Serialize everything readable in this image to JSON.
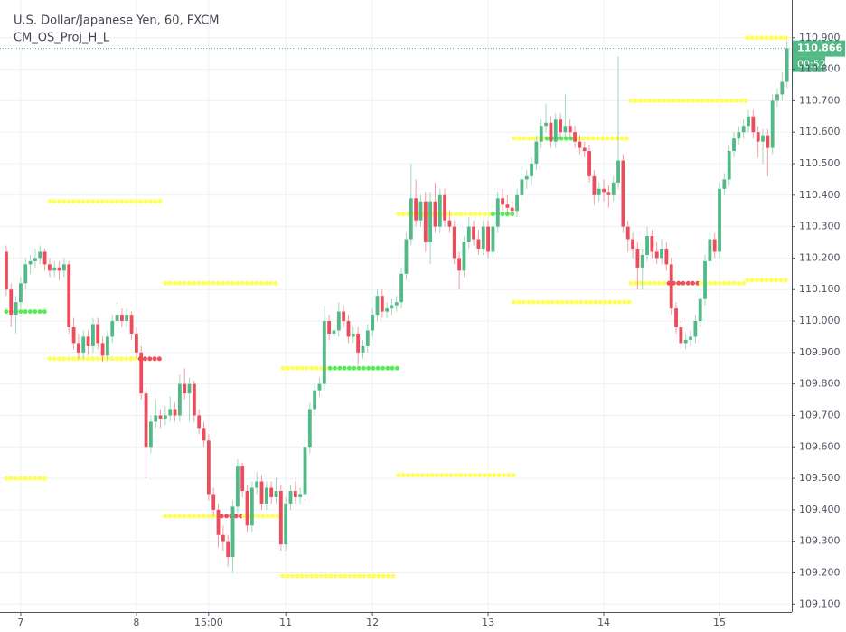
{
  "chart_data": {
    "type": "candlestick",
    "title": "U.S. Dollar/Japanese Yen, 60, FXCM",
    "subtitle": "CM_OS_Proj_H_L",
    "up_color": "#53b987",
    "down_color": "#eb4d5c",
    "grid": true,
    "xlim": [
      -1.3,
      163.0
    ],
    "ylim": [
      109.075,
      111.02
    ],
    "xticks": [
      {
        "value": 3,
        "label": "7"
      },
      {
        "value": 27,
        "label": "8"
      },
      {
        "value": 42,
        "label": "15:00"
      },
      {
        "value": 58,
        "label": "11"
      },
      {
        "value": 76,
        "label": "12"
      },
      {
        "value": 100,
        "label": "13"
      },
      {
        "value": 124,
        "label": "14"
      },
      {
        "value": 148,
        "label": "15"
      }
    ],
    "yticks": [
      {
        "value": 109.1,
        "label": "109.100"
      },
      {
        "value": 109.2,
        "label": "109.200"
      },
      {
        "value": 109.3,
        "label": "109.300"
      },
      {
        "value": 109.4,
        "label": "109.400"
      },
      {
        "value": 109.5,
        "label": "109.500"
      },
      {
        "value": 109.6,
        "label": "109.600"
      },
      {
        "value": 109.7,
        "label": "109.700"
      },
      {
        "value": 109.8,
        "label": "109.800"
      },
      {
        "value": 109.9,
        "label": "109.900"
      },
      {
        "value": 110.0,
        "label": "110.000"
      },
      {
        "value": 110.1,
        "label": "110.100"
      },
      {
        "value": 110.2,
        "label": "110.200"
      },
      {
        "value": 110.3,
        "label": "110.300"
      },
      {
        "value": 110.4,
        "label": "110.400"
      },
      {
        "value": 110.5,
        "label": "110.500"
      },
      {
        "value": 110.6,
        "label": "110.600"
      },
      {
        "value": 110.7,
        "label": "110.700"
      },
      {
        "value": 110.8,
        "label": "110.800"
      },
      {
        "value": 110.9,
        "label": "110.900"
      }
    ],
    "last_price": 110.866,
    "last_price_color": "#53b987",
    "countdown": "00:52",
    "candles": [
      [
        110.22,
        110.24,
        110.08,
        110.1
      ],
      [
        110.1,
        110.12,
        109.98,
        110.02
      ],
      [
        110.02,
        110.08,
        109.96,
        110.06
      ],
      [
        110.06,
        110.14,
        110.04,
        110.12
      ],
      [
        110.12,
        110.2,
        110.1,
        110.18
      ],
      [
        110.18,
        110.21,
        110.15,
        110.19
      ],
      [
        110.19,
        110.23,
        110.17,
        110.2
      ],
      [
        110.2,
        110.24,
        110.18,
        110.22
      ],
      [
        110.22,
        110.23,
        110.16,
        110.18
      ],
      [
        110.18,
        110.2,
        110.14,
        110.16
      ],
      [
        110.16,
        110.19,
        110.14,
        110.17
      ],
      [
        110.17,
        110.19,
        110.13,
        110.16
      ],
      [
        110.16,
        110.2,
        110.14,
        110.18
      ],
      [
        110.18,
        110.19,
        109.96,
        109.98
      ],
      [
        109.98,
        110.01,
        109.91,
        109.93
      ],
      [
        109.93,
        109.96,
        109.88,
        109.9
      ],
      [
        109.9,
        109.97,
        109.88,
        109.95
      ],
      [
        109.95,
        109.97,
        109.89,
        109.92
      ],
      [
        109.92,
        110.01,
        109.9,
        109.99
      ],
      [
        109.99,
        110.01,
        109.91,
        109.93
      ],
      [
        109.93,
        109.95,
        109.87,
        109.89
      ],
      [
        109.89,
        109.97,
        109.87,
        109.95
      ],
      [
        109.95,
        110.02,
        109.93,
        110.0
      ],
      [
        110.0,
        110.06,
        109.98,
        110.02
      ],
      [
        110.02,
        110.04,
        109.98,
        110.0
      ],
      [
        110.0,
        110.04,
        109.98,
        110.02
      ],
      [
        110.02,
        110.03,
        109.94,
        109.96
      ],
      [
        109.96,
        109.98,
        109.88,
        109.9
      ],
      [
        109.9,
        109.92,
        109.75,
        109.77
      ],
      [
        109.77,
        109.79,
        109.5,
        109.6
      ],
      [
        109.6,
        109.7,
        109.58,
        109.68
      ],
      [
        109.68,
        109.75,
        109.66,
        109.7
      ],
      [
        109.7,
        109.72,
        109.66,
        109.69
      ],
      [
        109.69,
        109.73,
        109.67,
        109.7
      ],
      [
        109.7,
        109.76,
        109.68,
        109.72
      ],
      [
        109.72,
        109.74,
        109.68,
        109.7
      ],
      [
        109.7,
        109.83,
        109.68,
        109.8
      ],
      [
        109.8,
        109.85,
        109.75,
        109.77
      ],
      [
        109.77,
        109.82,
        109.68,
        109.8
      ],
      [
        109.8,
        109.81,
        109.68,
        109.7
      ],
      [
        109.7,
        109.72,
        109.64,
        109.66
      ],
      [
        109.66,
        109.68,
        109.6,
        109.62
      ],
      [
        109.62,
        109.64,
        109.43,
        109.45
      ],
      [
        109.45,
        109.47,
        109.38,
        109.4
      ],
      [
        109.4,
        109.42,
        109.28,
        109.32
      ],
      [
        109.32,
        109.35,
        109.27,
        109.3
      ],
      [
        109.3,
        109.32,
        109.22,
        109.25
      ],
      [
        109.25,
        109.43,
        109.2,
        109.41
      ],
      [
        109.41,
        109.56,
        109.39,
        109.54
      ],
      [
        109.54,
        109.55,
        109.44,
        109.46
      ],
      [
        109.46,
        109.48,
        109.33,
        109.35
      ],
      [
        109.35,
        109.49,
        109.33,
        109.47
      ],
      [
        109.47,
        109.52,
        109.45,
        109.49
      ],
      [
        109.49,
        109.51,
        109.4,
        109.42
      ],
      [
        109.42,
        109.49,
        109.4,
        109.47
      ],
      [
        109.47,
        109.49,
        109.42,
        109.44
      ],
      [
        109.44,
        109.5,
        109.42,
        109.46
      ],
      [
        109.46,
        109.48,
        109.27,
        109.29
      ],
      [
        109.29,
        109.44,
        109.27,
        109.42
      ],
      [
        109.42,
        109.48,
        109.4,
        109.46
      ],
      [
        109.46,
        109.49,
        109.42,
        109.44
      ],
      [
        109.44,
        109.47,
        109.42,
        109.45
      ],
      [
        109.45,
        109.62,
        109.43,
        109.6
      ],
      [
        109.6,
        109.74,
        109.58,
        109.72
      ],
      [
        109.72,
        109.8,
        109.7,
        109.78
      ],
      [
        109.78,
        109.82,
        109.76,
        109.8
      ],
      [
        109.8,
        110.05,
        109.78,
        110.0
      ],
      [
        110.0,
        110.02,
        109.94,
        109.96
      ],
      [
        109.96,
        109.99,
        109.94,
        109.97
      ],
      [
        109.97,
        110.06,
        109.95,
        110.03
      ],
      [
        110.03,
        110.05,
        109.98,
        110.0
      ],
      [
        110.0,
        110.02,
        109.93,
        109.95
      ],
      [
        109.95,
        109.98,
        109.93,
        109.96
      ],
      [
        109.96,
        109.98,
        109.86,
        109.9
      ],
      [
        109.9,
        109.94,
        109.88,
        109.92
      ],
      [
        109.92,
        109.99,
        109.9,
        109.97
      ],
      [
        109.97,
        110.04,
        109.95,
        110.02
      ],
      [
        110.02,
        110.1,
        110.0,
        110.08
      ],
      [
        110.08,
        110.1,
        110.01,
        110.03
      ],
      [
        110.03,
        110.06,
        110.01,
        110.04
      ],
      [
        110.04,
        110.07,
        110.02,
        110.05
      ],
      [
        110.05,
        110.08,
        110.03,
        110.06
      ],
      [
        110.06,
        110.17,
        110.04,
        110.15
      ],
      [
        110.15,
        110.28,
        110.13,
        110.26
      ],
      [
        110.26,
        110.5,
        110.24,
        110.39
      ],
      [
        110.39,
        110.45,
        110.3,
        110.32
      ],
      [
        110.32,
        110.4,
        110.3,
        110.38
      ],
      [
        110.38,
        110.41,
        110.22,
        110.25
      ],
      [
        110.25,
        110.41,
        110.18,
        110.38
      ],
      [
        110.38,
        110.44,
        110.28,
        110.3
      ],
      [
        110.3,
        110.42,
        110.28,
        110.4
      ],
      [
        110.4,
        110.42,
        110.3,
        110.32
      ],
      [
        110.32,
        110.35,
        110.28,
        110.3
      ],
      [
        110.3,
        110.32,
        110.18,
        110.2
      ],
      [
        110.2,
        110.22,
        110.1,
        110.16
      ],
      [
        110.16,
        110.27,
        110.14,
        110.25
      ],
      [
        110.25,
        110.33,
        110.23,
        110.3
      ],
      [
        110.3,
        110.32,
        110.24,
        110.26
      ],
      [
        110.26,
        110.29,
        110.21,
        110.23
      ],
      [
        110.23,
        110.32,
        110.21,
        110.3
      ],
      [
        110.3,
        110.32,
        110.2,
        110.22
      ],
      [
        110.22,
        110.32,
        110.2,
        110.3
      ],
      [
        110.3,
        110.41,
        110.28,
        110.39
      ],
      [
        110.39,
        110.42,
        110.35,
        110.37
      ],
      [
        110.37,
        110.4,
        110.34,
        110.36
      ],
      [
        110.36,
        110.38,
        110.33,
        110.35
      ],
      [
        110.35,
        110.42,
        110.33,
        110.4
      ],
      [
        110.4,
        110.49,
        110.38,
        110.45
      ],
      [
        110.45,
        110.48,
        110.42,
        110.46
      ],
      [
        110.46,
        110.52,
        110.43,
        110.5
      ],
      [
        110.5,
        110.59,
        110.48,
        110.57
      ],
      [
        110.57,
        110.64,
        110.55,
        110.62
      ],
      [
        110.62,
        110.69,
        110.6,
        110.63
      ],
      [
        110.63,
        110.65,
        110.55,
        110.57
      ],
      [
        110.57,
        110.66,
        110.55,
        110.64
      ],
      [
        110.64,
        110.66,
        110.58,
        110.6
      ],
      [
        110.6,
        110.72,
        110.58,
        110.62
      ],
      [
        110.62,
        110.64,
        110.58,
        110.6
      ],
      [
        110.6,
        110.62,
        110.55,
        110.57
      ],
      [
        110.57,
        110.59,
        110.53,
        110.55
      ],
      [
        110.55,
        110.57,
        110.52,
        110.54
      ],
      [
        110.54,
        110.56,
        110.44,
        110.46
      ],
      [
        110.46,
        110.48,
        110.37,
        110.4
      ],
      [
        110.4,
        110.44,
        110.38,
        110.42
      ],
      [
        110.42,
        110.45,
        110.38,
        110.41
      ],
      [
        110.41,
        110.43,
        110.36,
        110.4
      ],
      [
        110.4,
        110.46,
        110.38,
        110.44
      ],
      [
        110.44,
        110.84,
        110.42,
        110.51
      ],
      [
        110.51,
        110.53,
        110.28,
        110.3
      ],
      [
        110.3,
        110.32,
        110.22,
        110.26
      ],
      [
        110.26,
        110.28,
        110.2,
        110.23
      ],
      [
        110.23,
        110.25,
        110.1,
        110.17
      ],
      [
        110.17,
        110.23,
        110.1,
        110.21
      ],
      [
        110.21,
        110.3,
        110.19,
        110.27
      ],
      [
        110.27,
        110.29,
        110.2,
        110.22
      ],
      [
        110.22,
        110.25,
        110.18,
        110.2
      ],
      [
        110.2,
        110.26,
        110.18,
        110.23
      ],
      [
        110.23,
        110.25,
        110.16,
        110.18
      ],
      [
        110.18,
        110.2,
        110.02,
        110.04
      ],
      [
        110.04,
        110.06,
        109.96,
        109.98
      ],
      [
        109.98,
        110.0,
        109.91,
        109.93
      ],
      [
        109.93,
        109.96,
        109.91,
        109.94
      ],
      [
        109.94,
        109.97,
        109.92,
        109.95
      ],
      [
        109.95,
        110.02,
        109.93,
        110.0
      ],
      [
        110.0,
        110.09,
        109.98,
        110.07
      ],
      [
        110.07,
        110.21,
        110.05,
        110.19
      ],
      [
        110.19,
        110.28,
        110.17,
        110.26
      ],
      [
        110.26,
        110.28,
        110.2,
        110.22
      ],
      [
        110.22,
        110.44,
        110.2,
        110.42
      ],
      [
        110.42,
        110.47,
        110.4,
        110.45
      ],
      [
        110.45,
        110.56,
        110.43,
        110.54
      ],
      [
        110.54,
        110.6,
        110.52,
        110.58
      ],
      [
        110.58,
        110.62,
        110.56,
        110.6
      ],
      [
        110.6,
        110.64,
        110.58,
        110.62
      ],
      [
        110.62,
        110.67,
        110.6,
        110.65
      ],
      [
        110.65,
        110.67,
        110.58,
        110.6
      ],
      [
        110.6,
        110.62,
        110.52,
        110.57
      ],
      [
        110.57,
        110.61,
        110.5,
        110.59
      ],
      [
        110.59,
        110.61,
        110.46,
        110.55
      ],
      [
        110.55,
        110.72,
        110.53,
        110.7
      ],
      [
        110.7,
        110.74,
        110.68,
        110.72
      ],
      [
        110.72,
        110.79,
        110.7,
        110.76
      ],
      [
        110.76,
        110.89,
        110.74,
        110.866
      ]
    ],
    "levels": [
      {
        "value": 109.5,
        "from": 0,
        "to": 8.4,
        "color": "#ffff55"
      },
      {
        "value": 110.03,
        "from": 0,
        "to": 8.4,
        "color": "#55ee55"
      },
      {
        "value": 110.38,
        "from": 9,
        "to": 32.5,
        "color": "#ffff55"
      },
      {
        "value": 109.88,
        "from": 9,
        "to": 27.8,
        "color": "#ffff55"
      },
      {
        "value": 109.88,
        "from": 27.8,
        "to": 32.5,
        "color": "#f0505a"
      },
      {
        "value": 110.12,
        "from": 33,
        "to": 56.8,
        "color": "#ffff55"
      },
      {
        "value": 109.38,
        "from": 33,
        "to": 44.7,
        "color": "#ffff55"
      },
      {
        "value": 109.38,
        "from": 44.7,
        "to": 49.3,
        "color": "#f0505a"
      },
      {
        "value": 109.38,
        "from": 49.3,
        "to": 56.8,
        "color": "#ffff55"
      },
      {
        "value": 109.85,
        "from": 57.4,
        "to": 67.2,
        "color": "#ffff55"
      },
      {
        "value": 109.85,
        "from": 67.2,
        "to": 81.2,
        "color": "#55ee55"
      },
      {
        "value": 109.19,
        "from": 57.4,
        "to": 81.2,
        "color": "#ffff55"
      },
      {
        "value": 110.34,
        "from": 81.4,
        "to": 101,
        "color": "#ffff55"
      },
      {
        "value": 110.34,
        "from": 101,
        "to": 105.3,
        "color": "#55ee55"
      },
      {
        "value": 109.51,
        "from": 81.4,
        "to": 105.3,
        "color": "#ffff55"
      },
      {
        "value": 110.58,
        "from": 105.4,
        "to": 112.2,
        "color": "#ffff55"
      },
      {
        "value": 110.58,
        "from": 112.2,
        "to": 118.8,
        "color": "#55ee55"
      },
      {
        "value": 110.58,
        "from": 118.8,
        "to": 129.5,
        "color": "#ffff55"
      },
      {
        "value": 110.06,
        "from": 105.4,
        "to": 129.5,
        "color": "#ffff55"
      },
      {
        "value": 110.7,
        "from": 129.6,
        "to": 153.5,
        "color": "#ffff55"
      },
      {
        "value": 110.12,
        "from": 129.6,
        "to": 137.5,
        "color": "#ffff55"
      },
      {
        "value": 110.12,
        "from": 137.5,
        "to": 144.1,
        "color": "#f0505a"
      },
      {
        "value": 110.12,
        "from": 144.1,
        "to": 153.5,
        "color": "#ffff55"
      },
      {
        "value": 110.9,
        "from": 153.8,
        "to": 162.5,
        "color": "#ffff55"
      },
      {
        "value": 110.13,
        "from": 153.8,
        "to": 162.5,
        "color": "#ffff55"
      }
    ]
  }
}
